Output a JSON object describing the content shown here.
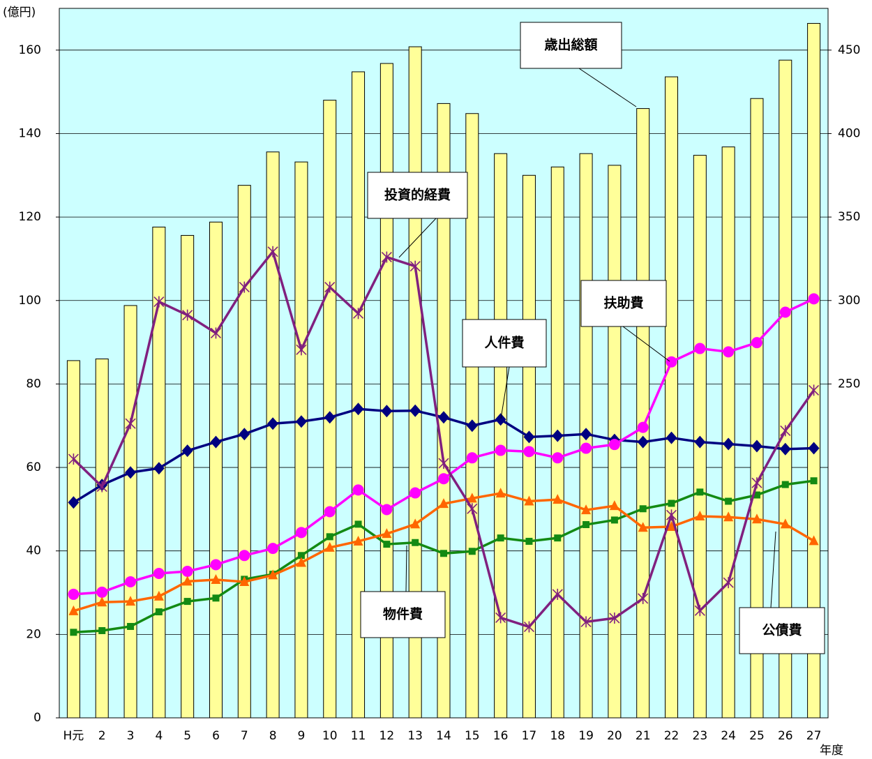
{
  "chart_data": {
    "type": "bar_line",
    "y_label": "(億円)",
    "x_label": "年度",
    "categories": [
      "H元",
      "2",
      "3",
      "4",
      "5",
      "6",
      "7",
      "8",
      "9",
      "10",
      "11",
      "12",
      "13",
      "14",
      "15",
      "16",
      "17",
      "18",
      "19",
      "20",
      "21",
      "22",
      "23",
      "24",
      "25",
      "26",
      "27"
    ],
    "ylim": [
      0,
      170
    ],
    "yticks": [
      0,
      20,
      40,
      60,
      80,
      100,
      120,
      140,
      160
    ],
    "y2lim": [
      50,
      475
    ],
    "y2ticks": [
      250,
      300,
      350,
      400,
      450
    ],
    "grid": true,
    "series": [
      {
        "name": "歳出総額",
        "type": "bar",
        "axis": "y2",
        "color": "#ffff99",
        "values": [
          264,
          265,
          297,
          344,
          339,
          347,
          369,
          389,
          383,
          420,
          437,
          442,
          452,
          418,
          412,
          388,
          375,
          380,
          388,
          381,
          415,
          434,
          387,
          392,
          421,
          444,
          466
        ]
      },
      {
        "name": "人件費",
        "type": "line",
        "marker": "diamond",
        "color": "#000080",
        "values": [
          51.6,
          55.8,
          58.8,
          59.8,
          64,
          66.1,
          68,
          70.5,
          71,
          72,
          74,
          73.5,
          73.6,
          72,
          70,
          71.5,
          67.3,
          67.6,
          68,
          66.6,
          66.1,
          67.1,
          66.1,
          65.6,
          65.1,
          64.4,
          64.6
        ]
      },
      {
        "name": "扶助費",
        "type": "line",
        "marker": "circle",
        "color": "#ff00ff",
        "values": [
          29.6,
          30.1,
          32.6,
          34.6,
          35.1,
          36.7,
          38.9,
          40.6,
          44.4,
          49.4,
          54.6,
          49.9,
          53.9,
          57.3,
          62.3,
          64.1,
          63.8,
          62.3,
          64.6,
          65.5,
          69.6,
          85.3,
          88.5,
          87.7,
          89.9,
          97.2,
          100.4
        ]
      },
      {
        "name": "物件費",
        "type": "line",
        "marker": "square",
        "color": "#138a13",
        "values": [
          20.5,
          20.9,
          21.9,
          25.4,
          27.9,
          28.7,
          33.2,
          34.4,
          38.9,
          43.4,
          46.4,
          41.6,
          42,
          39.4,
          39.9,
          43.1,
          42.3,
          43.1,
          46.3,
          47.4,
          50.1,
          51.4,
          54.1,
          51.9,
          53.4,
          55.9,
          56.8
        ]
      },
      {
        "name": "公債費",
        "type": "line",
        "marker": "triangle",
        "color": "#ff6600",
        "values": [
          25.6,
          27.7,
          27.9,
          29.1,
          32.7,
          33.1,
          32.6,
          34.2,
          37.2,
          40.8,
          42.3,
          44.1,
          46.4,
          51.3,
          52.6,
          53.8,
          51.9,
          52.3,
          49.8,
          50.8,
          45.6,
          45.8,
          48.3,
          48.1,
          47.6,
          46.4,
          42.4
        ]
      },
      {
        "name": "投資的経費",
        "type": "line",
        "marker": "star",
        "color": "#80207f",
        "values": [
          62,
          55.4,
          70.5,
          99.7,
          96.5,
          92.2,
          103.2,
          111.7,
          88.2,
          103.2,
          96.9,
          110.4,
          108.2,
          61,
          50.1,
          24,
          21.8,
          29.6,
          23,
          23.9,
          28.6,
          48.6,
          25.7,
          32.4,
          56.3,
          68.8,
          78.5
        ]
      }
    ]
  }
}
